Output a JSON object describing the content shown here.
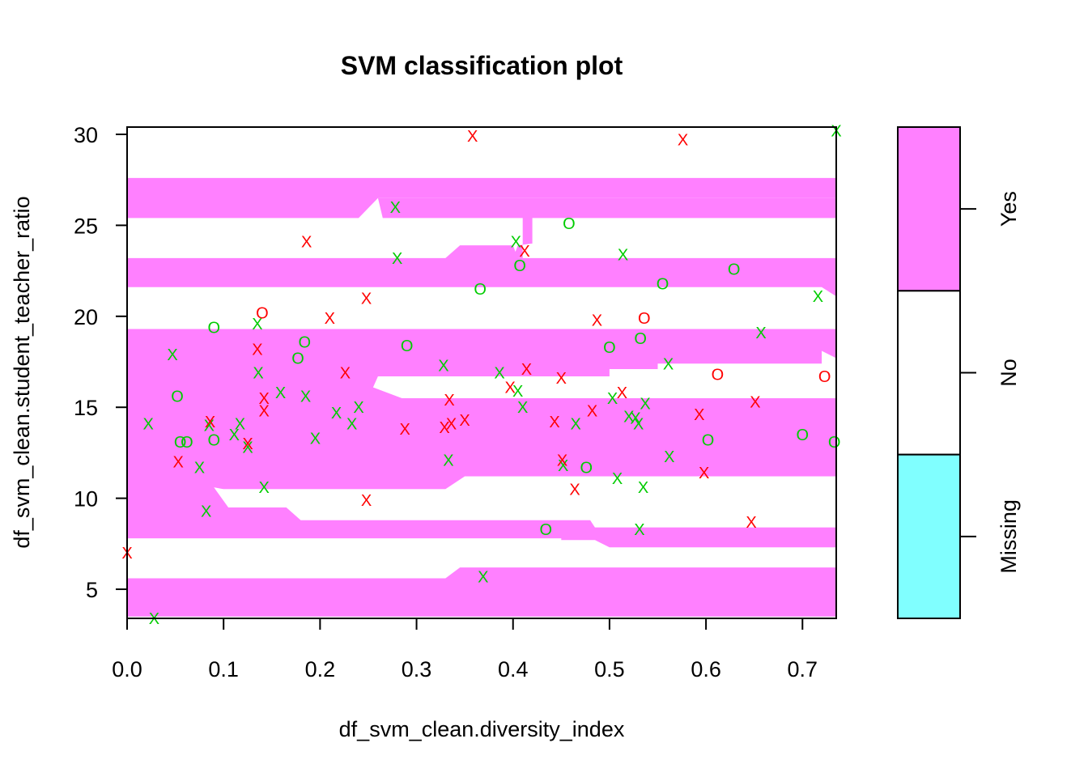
{
  "chart_data": {
    "type": "scatter",
    "title": "SVM classification plot",
    "xlabel": "df_svm_clean.diversity_index",
    "ylabel": "df_svm_clean.student_teacher_ratio",
    "xlim": [
      0,
      0.735
    ],
    "ylim": [
      3.4,
      30.4
    ],
    "x_ticks": [
      "0.0",
      "0.1",
      "0.2",
      "0.3",
      "0.4",
      "0.5",
      "0.6",
      "0.7"
    ],
    "y_ticks": [
      "5",
      "10",
      "15",
      "20",
      "25",
      "30"
    ],
    "x_tick_values": [
      0,
      0.1,
      0.2,
      0.3,
      0.4,
      0.5,
      0.6,
      0.7
    ],
    "y_tick_values": [
      5,
      10,
      15,
      20,
      25,
      30
    ],
    "grid": false,
    "legend": {
      "placement": "right",
      "entries": [
        {
          "label": "Yes",
          "color": "#ff80ff"
        },
        {
          "label": "No",
          "color": "#ffffff"
        },
        {
          "label": "Missing",
          "color": "#80ffff"
        }
      ]
    },
    "colors": {
      "yes_region": "#ff80ff",
      "no_region": "#ffffff",
      "green": "#00cc00",
      "red": "#ff0000"
    },
    "region_bands_yes": [
      {
        "y": [
          26.5,
          27.6
        ]
      },
      {
        "y": [
          25.4,
          26.5
        ],
        "x_start": [
          [
            0,
            0.24
          ],
          [
            0.26,
            0.735
          ]
        ]
      },
      {
        "y": [
          21.6,
          23.2
        ],
        "x_end": 0.735
      },
      {
        "y": [
          15.0,
          19.3
        ]
      },
      {
        "y": [
          7.8,
          15.0
        ]
      },
      {
        "y": [
          3.5,
          5.6
        ]
      }
    ],
    "series": [
      {
        "marker": "x",
        "color": "#00cc00",
        "points": [
          [
            0.028,
            3.4
          ],
          [
            0.047,
            17.9
          ],
          [
            0.022,
            14.1
          ],
          [
            0.082,
            9.3
          ],
          [
            0.075,
            11.7
          ],
          [
            0.085,
            14.0
          ],
          [
            0.111,
            13.5
          ],
          [
            0.117,
            14.1
          ],
          [
            0.125,
            12.8
          ],
          [
            0.135,
            19.6
          ],
          [
            0.136,
            16.9
          ],
          [
            0.142,
            10.6
          ],
          [
            0.159,
            15.8
          ],
          [
            0.185,
            15.6
          ],
          [
            0.195,
            13.3
          ],
          [
            0.217,
            14.7
          ],
          [
            0.233,
            14.1
          ],
          [
            0.24,
            15.0
          ],
          [
            0.278,
            26.0
          ],
          [
            0.28,
            23.2
          ],
          [
            0.328,
            17.3
          ],
          [
            0.333,
            12.1
          ],
          [
            0.369,
            5.7
          ],
          [
            0.386,
            16.9
          ],
          [
            0.403,
            24.1
          ],
          [
            0.405,
            15.9
          ],
          [
            0.41,
            15.0
          ],
          [
            0.452,
            11.8
          ],
          [
            0.465,
            14.1
          ],
          [
            0.503,
            15.5
          ],
          [
            0.508,
            11.1
          ],
          [
            0.514,
            23.4
          ],
          [
            0.52,
            14.5
          ],
          [
            0.527,
            14.4
          ],
          [
            0.53,
            14.1
          ],
          [
            0.531,
            8.3
          ],
          [
            0.535,
            10.6
          ],
          [
            0.537,
            15.2
          ],
          [
            0.561,
            17.4
          ],
          [
            0.562,
            12.3
          ],
          [
            0.657,
            19.1
          ],
          [
            0.716,
            21.1
          ],
          [
            0.735,
            30.2
          ]
        ]
      },
      {
        "marker": "o",
        "color": "#00cc00",
        "points": [
          [
            0.052,
            15.6
          ],
          [
            0.055,
            13.1
          ],
          [
            0.062,
            13.1
          ],
          [
            0.09,
            19.4
          ],
          [
            0.09,
            13.2
          ],
          [
            0.177,
            17.7
          ],
          [
            0.184,
            18.6
          ],
          [
            0.29,
            18.4
          ],
          [
            0.366,
            21.5
          ],
          [
            0.407,
            22.8
          ],
          [
            0.434,
            8.3
          ],
          [
            0.458,
            25.1
          ],
          [
            0.476,
            11.7
          ],
          [
            0.5,
            18.3
          ],
          [
            0.532,
            18.8
          ],
          [
            0.555,
            21.8
          ],
          [
            0.602,
            13.2
          ],
          [
            0.629,
            22.6
          ],
          [
            0.7,
            13.5
          ],
          [
            0.733,
            13.1
          ]
        ]
      },
      {
        "marker": "x",
        "color": "#ff0000",
        "points": [
          [
            0.0,
            7.0
          ],
          [
            0.053,
            12.0
          ],
          [
            0.086,
            14.2
          ],
          [
            0.125,
            13.0
          ],
          [
            0.135,
            18.2
          ],
          [
            0.142,
            15.5
          ],
          [
            0.142,
            14.8
          ],
          [
            0.186,
            24.1
          ],
          [
            0.21,
            19.9
          ],
          [
            0.226,
            16.9
          ],
          [
            0.248,
            21.0
          ],
          [
            0.248,
            9.9
          ],
          [
            0.288,
            13.8
          ],
          [
            0.329,
            13.9
          ],
          [
            0.334,
            15.4
          ],
          [
            0.336,
            14.1
          ],
          [
            0.35,
            14.3
          ],
          [
            0.358,
            29.9
          ],
          [
            0.397,
            16.1
          ],
          [
            0.412,
            23.6
          ],
          [
            0.414,
            17.1
          ],
          [
            0.443,
            14.2
          ],
          [
            0.45,
            16.6
          ],
          [
            0.451,
            12.1
          ],
          [
            0.464,
            10.5
          ],
          [
            0.482,
            14.8
          ],
          [
            0.487,
            19.8
          ],
          [
            0.513,
            15.8
          ],
          [
            0.576,
            29.7
          ],
          [
            0.593,
            14.6
          ],
          [
            0.598,
            11.4
          ],
          [
            0.647,
            8.7
          ],
          [
            0.651,
            15.3
          ]
        ]
      },
      {
        "marker": "o",
        "color": "#ff0000",
        "points": [
          [
            0.14,
            20.2
          ],
          [
            0.536,
            19.9
          ],
          [
            0.612,
            16.8
          ],
          [
            0.723,
            16.7
          ]
        ]
      }
    ]
  }
}
